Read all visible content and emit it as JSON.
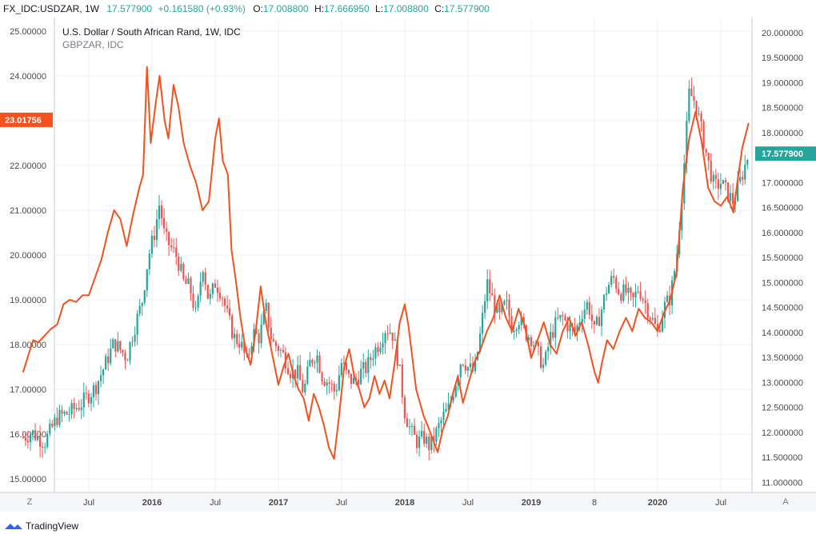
{
  "header": {
    "symbol": "FX_IDC:USDZAR, 1W",
    "last": "17.577900",
    "change": "+0.161580 (+0.93%)",
    "open_label": "O:",
    "open": "17.008800",
    "high_label": "H:",
    "high": "17.666950",
    "low_label": "L:",
    "low": "17.008800",
    "close_label": "C:",
    "close": "17.577900"
  },
  "legend": {
    "main": "U.S. Dollar / South African Rand, 1W, IDC",
    "overlay": "GBPZAR, IDC"
  },
  "colors": {
    "up": "#26a69a",
    "down": "#ef5350",
    "overlay": "#f4511e",
    "grid": "#eef0f4",
    "axis_text": "#4a4a4a",
    "border": "#c9ccd3",
    "bottom_bar": "#f5f6f8"
  },
  "left_axis": {
    "ticks": [
      "25.00000",
      "24.00000",
      "23.00000",
      "22.00000",
      "21.00000",
      "20.00000",
      "19.00000",
      "18.00000",
      "17.00000",
      "16.00000",
      "15.00000"
    ],
    "values": [
      25,
      24,
      23,
      22,
      21,
      20,
      19,
      18,
      17,
      16,
      15
    ],
    "badge": "23.01756"
  },
  "right_axis": {
    "ticks": [
      "20.000000",
      "19.500000",
      "19.000000",
      "18.500000",
      "18.000000",
      "17.500000",
      "17.000000",
      "16.500000",
      "16.000000",
      "15.500000",
      "15.000000",
      "14.500000",
      "14.000000",
      "13.500000",
      "13.000000",
      "12.500000",
      "12.000000",
      "11.500000",
      "11.000000"
    ],
    "values": [
      20,
      19.5,
      19,
      18.5,
      18,
      17.5,
      17,
      16.5,
      16,
      15.5,
      15,
      14.5,
      14,
      13.5,
      13,
      12.5,
      12,
      11.5,
      11
    ],
    "badge": "17.577900"
  },
  "time_axis": {
    "labels": [
      {
        "t": "Jul",
        "year": 2015.5,
        "bold": false
      },
      {
        "t": "2016",
        "year": 2016.0,
        "bold": true
      },
      {
        "t": "Jul",
        "year": 2016.5,
        "bold": false
      },
      {
        "t": "2017",
        "year": 2017.0,
        "bold": true
      },
      {
        "t": "Jul",
        "year": 2017.5,
        "bold": false
      },
      {
        "t": "2018",
        "year": 2018.0,
        "bold": true
      },
      {
        "t": "Jul",
        "year": 2018.5,
        "bold": false
      },
      {
        "t": "2019",
        "year": 2019.0,
        "bold": true
      },
      {
        "t": "8",
        "year": 2019.5,
        "bold": false
      },
      {
        "t": "2020",
        "year": 2020.0,
        "bold": true
      },
      {
        "t": "Jul",
        "year": 2020.5,
        "bold": false
      }
    ],
    "z_button": "Z",
    "a_button": "A"
  },
  "footer": {
    "brand": "TradingView"
  },
  "chart_data": {
    "type": "line",
    "x_unit": "year",
    "series": [
      {
        "name": "GBPZAR",
        "axis": "left",
        "points": [
          [
            2014.98,
            17.38
          ],
          [
            2015.02,
            17.75
          ],
          [
            2015.06,
            18.1
          ],
          [
            2015.1,
            18.05
          ],
          [
            2015.15,
            18.2
          ],
          [
            2015.2,
            18.35
          ],
          [
            2015.25,
            18.45
          ],
          [
            2015.3,
            18.9
          ],
          [
            2015.35,
            19.0
          ],
          [
            2015.4,
            18.95
          ],
          [
            2015.45,
            19.1
          ],
          [
            2015.5,
            19.1
          ],
          [
            2015.55,
            19.5
          ],
          [
            2015.6,
            19.9
          ],
          [
            2015.65,
            20.5
          ],
          [
            2015.7,
            21.0
          ],
          [
            2015.75,
            20.8
          ],
          [
            2015.8,
            20.2
          ],
          [
            2015.85,
            20.9
          ],
          [
            2015.9,
            21.5
          ],
          [
            2015.93,
            21.8
          ],
          [
            2015.96,
            24.2
          ],
          [
            2015.99,
            22.5
          ],
          [
            2016.03,
            23.4
          ],
          [
            2016.06,
            24.0
          ],
          [
            2016.1,
            23.0
          ],
          [
            2016.13,
            22.6
          ],
          [
            2016.17,
            23.8
          ],
          [
            2016.21,
            23.3
          ],
          [
            2016.25,
            22.5
          ],
          [
            2016.3,
            22.0
          ],
          [
            2016.35,
            21.6
          ],
          [
            2016.4,
            21.0
          ],
          [
            2016.45,
            21.2
          ],
          [
            2016.5,
            22.6
          ],
          [
            2016.53,
            23.05
          ],
          [
            2016.56,
            22.1
          ],
          [
            2016.6,
            21.8
          ],
          [
            2016.63,
            20.1
          ],
          [
            2016.66,
            19.5
          ],
          [
            2016.7,
            18.6
          ],
          [
            2016.74,
            17.9
          ],
          [
            2016.78,
            17.55
          ],
          [
            2016.82,
            18.3
          ],
          [
            2016.86,
            19.3
          ],
          [
            2016.9,
            18.5
          ],
          [
            2016.95,
            17.8
          ],
          [
            2017.0,
            17.1
          ],
          [
            2017.04,
            17.5
          ],
          [
            2017.08,
            17.8
          ],
          [
            2017.12,
            17.3
          ],
          [
            2017.16,
            17.0
          ],
          [
            2017.2,
            16.8
          ],
          [
            2017.24,
            16.3
          ],
          [
            2017.28,
            16.9
          ],
          [
            2017.32,
            16.6
          ],
          [
            2017.36,
            16.2
          ],
          [
            2017.4,
            15.7
          ],
          [
            2017.44,
            15.45
          ],
          [
            2017.48,
            16.4
          ],
          [
            2017.52,
            17.5
          ],
          [
            2017.56,
            17.9
          ],
          [
            2017.6,
            17.3
          ],
          [
            2017.64,
            17.0
          ],
          [
            2017.68,
            16.6
          ],
          [
            2017.72,
            16.8
          ],
          [
            2017.76,
            17.3
          ],
          [
            2017.8,
            16.9
          ],
          [
            2017.84,
            17.2
          ],
          [
            2017.88,
            16.8
          ],
          [
            2017.92,
            17.6
          ],
          [
            2017.96,
            18.5
          ],
          [
            2018.0,
            18.9
          ],
          [
            2018.03,
            18.4
          ],
          [
            2018.06,
            17.7
          ],
          [
            2018.09,
            17.0
          ],
          [
            2018.12,
            16.7
          ],
          [
            2018.15,
            16.4
          ],
          [
            2018.18,
            16.2
          ],
          [
            2018.22,
            15.9
          ],
          [
            2018.26,
            15.6
          ],
          [
            2018.3,
            16.1
          ],
          [
            2018.34,
            16.4
          ],
          [
            2018.38,
            16.9
          ],
          [
            2018.42,
            17.3
          ],
          [
            2018.46,
            16.7
          ],
          [
            2018.5,
            17.1
          ],
          [
            2018.55,
            17.6
          ],
          [
            2018.6,
            17.9
          ],
          [
            2018.65,
            18.3
          ],
          [
            2018.7,
            18.6
          ],
          [
            2018.75,
            19.1
          ],
          [
            2018.8,
            18.6
          ],
          [
            2018.85,
            18.3
          ],
          [
            2018.9,
            18.8
          ],
          [
            2018.95,
            18.4
          ],
          [
            2019.0,
            17.7
          ],
          [
            2019.05,
            18.1
          ],
          [
            2019.1,
            18.5
          ],
          [
            2019.15,
            18.0
          ],
          [
            2019.2,
            17.8
          ],
          [
            2019.25,
            18.3
          ],
          [
            2019.3,
            18.6
          ],
          [
            2019.35,
            18.2
          ],
          [
            2019.4,
            18.5
          ],
          [
            2019.45,
            18.0
          ],
          [
            2019.5,
            17.4
          ],
          [
            2019.53,
            17.15
          ],
          [
            2019.56,
            17.6
          ],
          [
            2019.6,
            18.1
          ],
          [
            2019.65,
            17.9
          ],
          [
            2019.7,
            18.3
          ],
          [
            2019.75,
            18.6
          ],
          [
            2019.8,
            18.3
          ],
          [
            2019.85,
            18.8
          ],
          [
            2019.9,
            18.6
          ],
          [
            2019.95,
            18.5
          ],
          [
            2020.0,
            18.3
          ],
          [
            2020.05,
            18.7
          ],
          [
            2020.1,
            19.0
          ],
          [
            2020.15,
            19.6
          ],
          [
            2020.2,
            21.5
          ],
          [
            2020.25,
            22.6
          ],
          [
            2020.3,
            23.2
          ],
          [
            2020.35,
            22.5
          ],
          [
            2020.4,
            21.5
          ],
          [
            2020.45,
            21.2
          ],
          [
            2020.5,
            21.1
          ],
          [
            2020.55,
            21.3
          ],
          [
            2020.6,
            20.95
          ],
          [
            2020.63,
            21.6
          ],
          [
            2020.67,
            22.4
          ],
          [
            2020.72,
            22.95
          ]
        ]
      },
      {
        "name": "U.S. Dollar / South African Rand",
        "axis": "right",
        "candle_anchors": [
          [
            2014.98,
            11.9
          ],
          [
            2015.05,
            12.0
          ],
          [
            2015.15,
            11.8
          ],
          [
            2015.25,
            12.3
          ],
          [
            2015.35,
            12.4
          ],
          [
            2015.45,
            12.6
          ],
          [
            2015.55,
            12.9
          ],
          [
            2015.62,
            13.3
          ],
          [
            2015.7,
            13.8
          ],
          [
            2015.8,
            13.5
          ],
          [
            2015.85,
            14.0
          ],
          [
            2015.92,
            14.6
          ],
          [
            2015.97,
            15.5
          ],
          [
            2016.02,
            16.0
          ],
          [
            2016.06,
            16.6
          ],
          [
            2016.1,
            15.9
          ],
          [
            2016.15,
            15.7
          ],
          [
            2016.2,
            15.5
          ],
          [
            2016.25,
            15.0
          ],
          [
            2016.3,
            14.9
          ],
          [
            2016.35,
            14.3
          ],
          [
            2016.4,
            15.4
          ],
          [
            2016.45,
            14.6
          ],
          [
            2016.5,
            15.0
          ],
          [
            2016.55,
            14.8
          ],
          [
            2016.6,
            14.3
          ],
          [
            2016.65,
            13.9
          ],
          [
            2016.7,
            13.8
          ],
          [
            2016.75,
            13.4
          ],
          [
            2016.8,
            14.0
          ],
          [
            2016.85,
            13.9
          ],
          [
            2016.9,
            14.5
          ],
          [
            2016.95,
            13.8
          ],
          [
            2017.0,
            13.7
          ],
          [
            2017.05,
            13.5
          ],
          [
            2017.1,
            13.2
          ],
          [
            2017.15,
            13.2
          ],
          [
            2017.2,
            12.8
          ],
          [
            2017.25,
            13.4
          ],
          [
            2017.3,
            13.6
          ],
          [
            2017.35,
            13.1
          ],
          [
            2017.4,
            13.0
          ],
          [
            2017.45,
            12.8
          ],
          [
            2017.5,
            13.4
          ],
          [
            2017.55,
            13.1
          ],
          [
            2017.6,
            13.0
          ],
          [
            2017.65,
            13.2
          ],
          [
            2017.7,
            13.3
          ],
          [
            2017.75,
            13.6
          ],
          [
            2017.8,
            13.8
          ],
          [
            2017.85,
            14.1
          ],
          [
            2017.9,
            14.0
          ],
          [
            2017.95,
            13.4
          ],
          [
            2018.0,
            12.4
          ],
          [
            2018.05,
            12.0
          ],
          [
            2018.1,
            11.8
          ],
          [
            2018.15,
            11.9
          ],
          [
            2018.2,
            11.7
          ],
          [
            2018.25,
            12.0
          ],
          [
            2018.3,
            12.3
          ],
          [
            2018.35,
            12.5
          ],
          [
            2018.4,
            13.0
          ],
          [
            2018.45,
            13.5
          ],
          [
            2018.5,
            13.3
          ],
          [
            2018.55,
            13.2
          ],
          [
            2018.6,
            14.0
          ],
          [
            2018.65,
            15.0
          ],
          [
            2018.7,
            14.6
          ],
          [
            2018.75,
            14.3
          ],
          [
            2018.8,
            14.6
          ],
          [
            2018.85,
            14.1
          ],
          [
            2018.9,
            14.3
          ],
          [
            2018.95,
            14.0
          ],
          [
            2019.0,
            13.9
          ],
          [
            2019.05,
            13.6
          ],
          [
            2019.1,
            13.3
          ],
          [
            2019.15,
            13.9
          ],
          [
            2019.2,
            14.2
          ],
          [
            2019.25,
            14.3
          ],
          [
            2019.3,
            14.1
          ],
          [
            2019.35,
            14.0
          ],
          [
            2019.4,
            14.4
          ],
          [
            2019.45,
            14.6
          ],
          [
            2019.5,
            14.0
          ],
          [
            2019.55,
            14.4
          ],
          [
            2019.6,
            14.9
          ],
          [
            2019.65,
            15.1
          ],
          [
            2019.7,
            14.8
          ],
          [
            2019.75,
            14.8
          ],
          [
            2019.8,
            14.6
          ],
          [
            2019.85,
            14.9
          ],
          [
            2019.9,
            14.6
          ],
          [
            2019.95,
            14.3
          ],
          [
            2020.0,
            14.0
          ],
          [
            2020.05,
            14.5
          ],
          [
            2020.1,
            14.7
          ],
          [
            2020.15,
            15.5
          ],
          [
            2020.2,
            17.0
          ],
          [
            2020.25,
            18.8
          ],
          [
            2020.3,
            18.6
          ],
          [
            2020.35,
            18.0
          ],
          [
            2020.4,
            17.4
          ],
          [
            2020.45,
            16.9
          ],
          [
            2020.5,
            17.0
          ],
          [
            2020.55,
            16.8
          ],
          [
            2020.6,
            16.6
          ],
          [
            2020.65,
            17.0
          ],
          [
            2020.72,
            17.578
          ]
        ]
      }
    ],
    "ylim_left": [
      14.7,
      25.3
    ],
    "ylim_right": [
      10.8,
      20.3
    ],
    "grid": true,
    "legend": "top-left"
  }
}
